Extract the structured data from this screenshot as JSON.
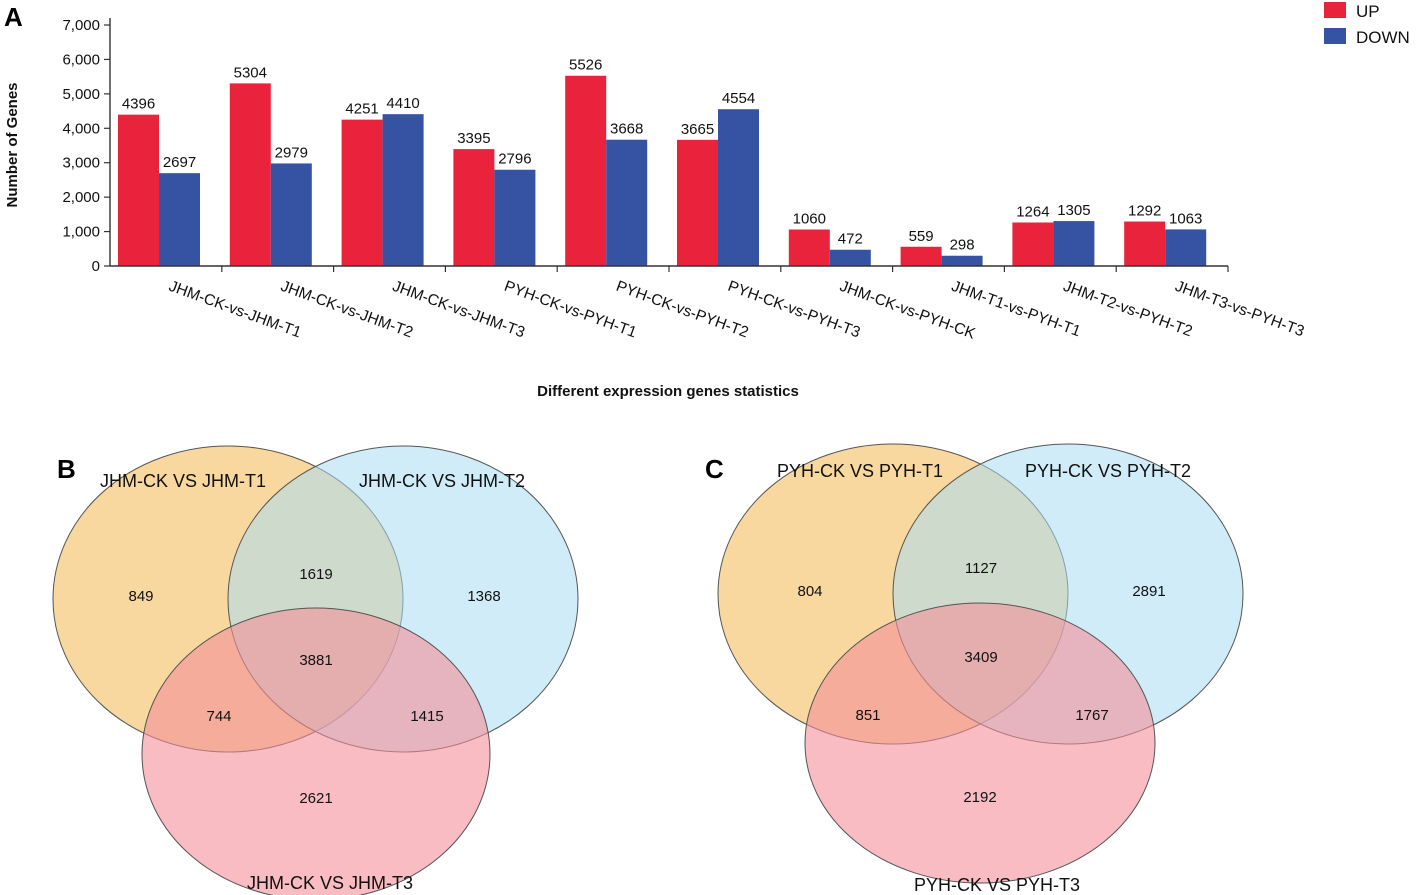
{
  "panels": {
    "a_label": "A",
    "b_label": "B",
    "c_label": "C"
  },
  "chart_data": [
    {
      "type": "bar",
      "panel": "A",
      "categories": [
        "JHM-CK-vs-JHM-T1",
        "JHM-CK-vs-JHM-T2",
        "JHM-CK-vs-JHM-T3",
        "PYH-CK-vs-PYH-T1",
        "PYH-CK-vs-PYH-T2",
        "PYH-CK-vs-PYH-T3",
        "JHM-CK-vs-PYH-CK",
        "JHM-T1-vs-PYH-T1",
        "JHM-T2-vs-PYH-T2",
        "JHM-T3-vs-PYH-T3"
      ],
      "series": [
        {
          "name": "UP",
          "color": "#e8233b",
          "values": [
            4396,
            5304,
            4251,
            3395,
            5526,
            3665,
            1060,
            559,
            1264,
            1292
          ]
        },
        {
          "name": "DOWN",
          "color": "#3652a3",
          "values": [
            2697,
            2979,
            4410,
            2796,
            3668,
            4554,
            472,
            298,
            1305,
            1063
          ]
        }
      ],
      "title": "",
      "xlabel": "Different expression genes statistics",
      "ylabel": "Number of Genes",
      "ylim": [
        0,
        7000
      ],
      "yticks": [
        0,
        1000,
        2000,
        3000,
        4000,
        5000,
        6000,
        7000
      ],
      "ytick_labels": [
        "0",
        "1,000",
        "2,000",
        "3,000",
        "4,000",
        "5,000",
        "6,000",
        "7,000"
      ],
      "legend": "top-right"
    },
    {
      "type": "venn",
      "panel": "B",
      "sets": [
        {
          "name": "JHM-CK VS JHM-T1",
          "color": "#f7d18d"
        },
        {
          "name": "JHM-CK VS JHM-T2",
          "color": "#a9dcf3"
        },
        {
          "name": "JHM-CK VS JHM-T3",
          "color": "#f38f99"
        }
      ],
      "regions": {
        "only_1": 849,
        "only_2": 1368,
        "only_3": 2621,
        "r12": 1619,
        "r13": 744,
        "r23": 1415,
        "r123": 3881
      }
    },
    {
      "type": "venn",
      "panel": "C",
      "sets": [
        {
          "name": "PYH-CK VS PYH-T1",
          "color": "#f7d18d"
        },
        {
          "name": "PYH-CK VS PYH-T2",
          "color": "#a9dcf3"
        },
        {
          "name": "PYH-CK VS PYH-T3",
          "color": "#f38f99"
        }
      ],
      "regions": {
        "only_1": 804,
        "only_2": 2891,
        "only_3": 2192,
        "r12": 1127,
        "r13": 851,
        "r23": 1767,
        "r123": 3409
      }
    }
  ]
}
